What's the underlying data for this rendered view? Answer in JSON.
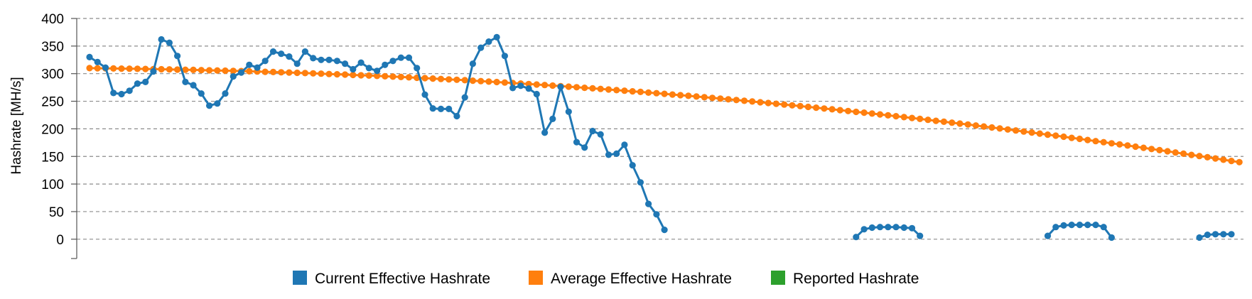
{
  "chart_data": {
    "type": "line",
    "title": "",
    "xlabel": "",
    "ylabel": "Hashrate [MH/s]",
    "ylim": [
      -35,
      400
    ],
    "y_ticks": [
      0,
      50,
      100,
      150,
      200,
      250,
      300,
      350,
      400
    ],
    "y_tick_labels": [
      "0",
      "50",
      "100",
      "150",
      "200",
      "250",
      "300",
      "350",
      "400"
    ],
    "grid": true,
    "legend_position": "bottom",
    "x_points": 144,
    "series": [
      {
        "name": "Current Effective Hashrate",
        "color": "#1f77b4",
        "segments": [
          {
            "start": 0,
            "values": [
              330,
              321,
              311,
              265,
              263,
              269,
              282,
              285,
              304,
              362,
              356,
              332,
              285,
              279,
              264,
              242,
              246,
              264,
              295,
              302,
              316,
              311,
              323,
              340,
              336,
              331,
              318,
              340,
              328,
              325,
              325,
              323,
              318,
              308,
              320,
              310,
              305,
              316,
              323,
              329,
              329,
              310,
              262,
              237,
              236,
              236,
              223,
              257,
              318,
              347,
              358,
              366,
              332,
              274,
              278,
              273,
              263,
              193,
              218,
              276,
              231,
              176,
              166,
              196,
              190,
              153,
              155,
              171,
              134,
              103,
              64,
              45,
              17
            ]
          },
          {
            "start": 96,
            "values": [
              4,
              18,
              21,
              22,
              22,
              22,
              21,
              20,
              6
            ]
          },
          {
            "start": 120,
            "values": [
              6,
              22,
              25,
              26,
              26,
              26,
              26,
              22,
              3
            ]
          },
          {
            "start": 139,
            "values": [
              3,
              8,
              9,
              9,
              9
            ]
          }
        ]
      },
      {
        "name": "Average Effective Hashrate",
        "color": "#ff7f0e",
        "segments": [
          {
            "start": 0,
            "values": [
              310,
              309.8,
              309.6,
              309.4,
              309.2,
              309,
              308.8,
              308.5,
              308.3,
              308,
              307.7,
              307.4,
              307.1,
              306.8,
              306.5,
              306.1,
              305.8,
              305.4,
              305,
              304.6,
              304.2,
              303.8,
              303.4,
              302.9,
              302.5,
              302,
              301.5,
              301,
              300.5,
              300,
              299.4,
              298.9,
              298.3,
              297.7,
              297.1,
              296.5,
              295.9,
              295.3,
              294.6,
              293.9,
              293.3,
              292.6,
              291.9,
              291.1,
              290.4,
              289.6,
              288.9,
              288.1,
              287.3,
              286.5,
              285.6,
              284.8,
              283.9,
              283,
              282.1,
              281.2,
              280.3,
              279.4,
              278.4,
              277.4,
              276.4,
              275.4,
              274.4,
              273.4,
              272.3,
              271.3,
              270.2,
              269.1,
              268,
              266.9,
              265.7,
              264.6,
              263.4,
              262.2,
              261,
              259.8,
              258.6,
              257.3,
              256.1,
              254.8,
              253.5,
              252.2,
              250.9,
              249.5,
              248.2,
              246.8,
              245.4,
              244,
              242.6,
              241.2,
              239.8,
              238.3,
              236.8,
              235.4,
              233.9,
              232.3,
              230.8,
              229.3,
              227.7,
              226.1,
              224.5,
              222.9,
              221.3,
              219.7,
              218,
              216.3,
              214.6,
              212.9,
              211.2,
              209.5,
              207.8,
              206,
              204.2,
              202.4,
              200.6,
              198.8,
              197,
              195.1,
              193.3,
              191.4,
              189.5,
              187.6,
              185.7,
              183.7,
              181.8,
              179.8,
              177.8,
              175.8,
              173.8,
              171.8,
              169.7,
              167.7,
              165.6,
              163.5,
              161.4,
              159.3,
              157.2,
              155,
              152.8,
              150.7,
              148.5,
              146.3,
              144,
              141.8,
              139.6
            ]
          }
        ]
      },
      {
        "name": "Reported Hashrate",
        "color": "#2ca02c",
        "segments": []
      }
    ]
  }
}
